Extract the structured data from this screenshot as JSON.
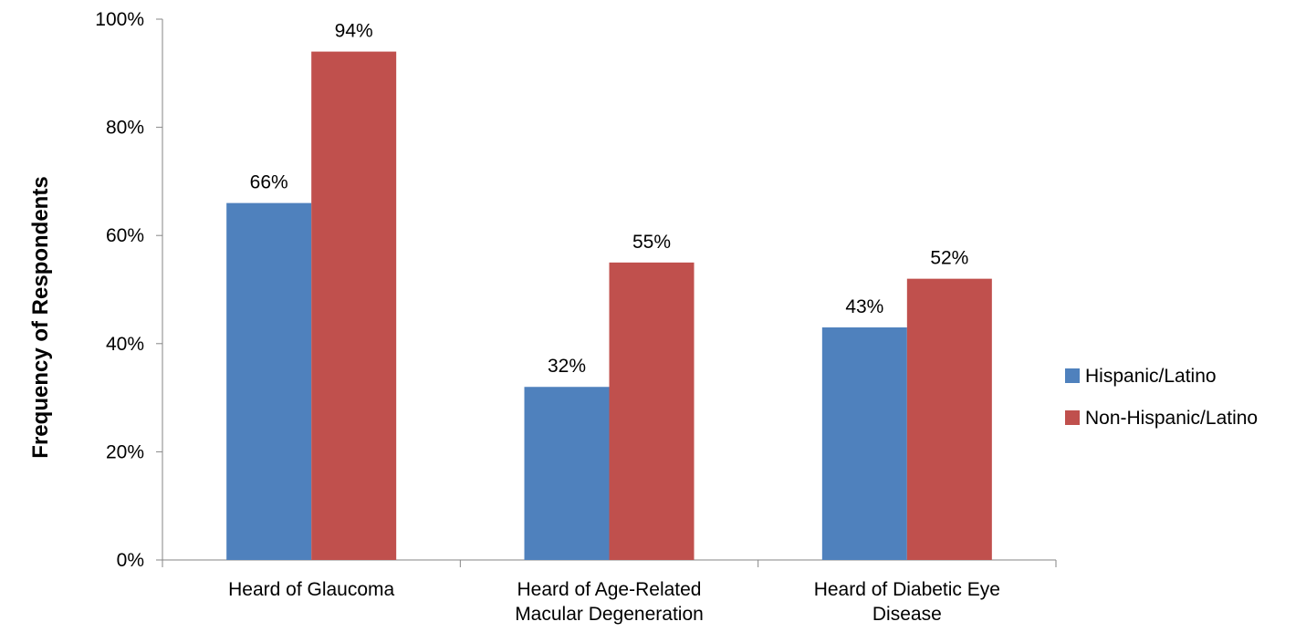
{
  "chart_data": {
    "type": "bar",
    "title": "",
    "xlabel": "",
    "ylabel": "Frequency  of Respondents",
    "ylim": [
      0,
      100
    ],
    "yticks": [
      0,
      20,
      40,
      60,
      80,
      100
    ],
    "ytick_labels": [
      "0%",
      "20%",
      "40%",
      "60%",
      "80%",
      "100%"
    ],
    "grid": false,
    "legend_position": "right",
    "categories": [
      [
        "Heard of Glaucoma"
      ],
      [
        "Heard of Age-Related",
        "Macular Degeneration"
      ],
      [
        "Heard of Diabetic Eye",
        "Disease"
      ]
    ],
    "series": [
      {
        "name": "Hispanic/Latino",
        "color": "#4F81BD",
        "values": [
          66,
          32,
          43
        ],
        "labels": [
          "66%",
          "32%",
          "43%"
        ]
      },
      {
        "name": "Non-Hispanic/Latino",
        "color": "#C0504D",
        "values": [
          94,
          55,
          52
        ],
        "labels": [
          "94%",
          "55%",
          "52%"
        ]
      }
    ]
  }
}
